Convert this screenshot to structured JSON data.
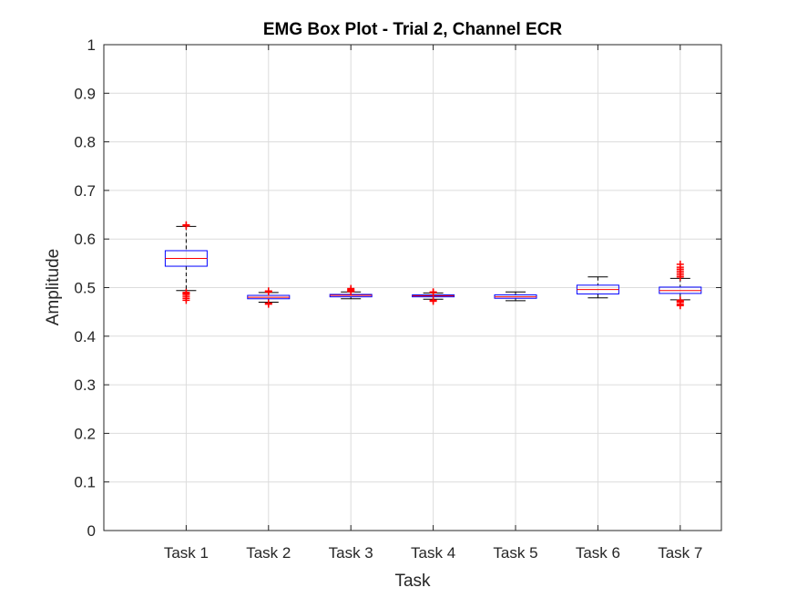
{
  "chart_data": {
    "type": "box",
    "title": "EMG Box Plot - Trial 2, Channel ECR",
    "xlabel": "Task",
    "ylabel": "Amplitude",
    "ylim": [
      0,
      1
    ],
    "yticks": [
      0,
      0.1,
      0.2,
      0.3,
      0.4,
      0.5,
      0.6,
      0.7,
      0.8,
      0.9,
      1
    ],
    "ytick_labels": [
      "0",
      "0.1",
      "0.2",
      "0.3",
      "0.4",
      "0.5",
      "0.6",
      "0.7",
      "0.8",
      "0.9",
      "1"
    ],
    "grid": true,
    "categories": [
      "Task 1",
      "Task 2",
      "Task 3",
      "Task 4",
      "Task 5",
      "Task 6",
      "Task 7"
    ],
    "boxes": [
      {
        "whisker_low": 0.494,
        "q1": 0.544,
        "median": 0.56,
        "q3": 0.576,
        "whisker_high": 0.626,
        "outliers": [
          0.474,
          0.478,
          0.482,
          0.486,
          0.488,
          0.49,
          0.627,
          0.629
        ]
      },
      {
        "whisker_low": 0.47,
        "q1": 0.477,
        "median": 0.48,
        "q3": 0.484,
        "whisker_high": 0.49,
        "outliers": [
          0.466,
          0.468,
          0.491,
          0.493
        ]
      },
      {
        "whisker_low": 0.477,
        "q1": 0.481,
        "median": 0.484,
        "q3": 0.486,
        "whisker_high": 0.491,
        "outliers": [
          0.492,
          0.494,
          0.496,
          0.498
        ]
      },
      {
        "whisker_low": 0.476,
        "q1": 0.481,
        "median": 0.483,
        "q3": 0.485,
        "whisker_high": 0.489,
        "outliers": [
          0.472,
          0.474,
          0.49,
          0.491
        ]
      },
      {
        "whisker_low": 0.473,
        "q1": 0.478,
        "median": 0.481,
        "q3": 0.485,
        "whisker_high": 0.491,
        "outliers": []
      },
      {
        "whisker_low": 0.479,
        "q1": 0.487,
        "median": 0.496,
        "q3": 0.505,
        "whisker_high": 0.522,
        "outliers": []
      },
      {
        "whisker_low": 0.475,
        "q1": 0.488,
        "median": 0.494,
        "q3": 0.501,
        "whisker_high": 0.519,
        "outliers": [
          0.463,
          0.466,
          0.47,
          0.472,
          0.474,
          0.522,
          0.526,
          0.53,
          0.534,
          0.538,
          0.542,
          0.548
        ]
      }
    ],
    "colors": {
      "box": "#0000ff",
      "median": "#ff0000",
      "whisker": "#000000",
      "outlier": "#ff0000"
    }
  }
}
